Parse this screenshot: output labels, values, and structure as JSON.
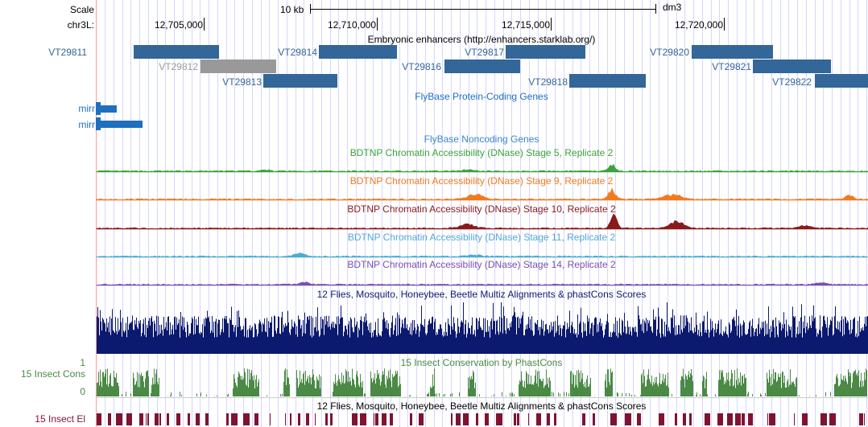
{
  "browser": {
    "ruler": {
      "scale_label": "Scale",
      "scale_bar_label": "10 kb",
      "assembly": "dm3",
      "chrom_label": "chr3L:",
      "ticks": [
        "12,705,000",
        "12,710,000",
        "12,715,000",
        "12,720,000"
      ]
    },
    "tracks": {
      "enhancers": {
        "title": "Embryonic enhancers (http://enhancers.starklab.org/)",
        "color": "#336699",
        "grey_color": "#999999",
        "items": [
          {
            "label": "VT29811"
          },
          {
            "label": "VT29812"
          },
          {
            "label": "VT29813"
          },
          {
            "label": "VT29814"
          },
          {
            "label": "VT29816"
          },
          {
            "label": "VT29817"
          },
          {
            "label": "VT29818"
          },
          {
            "label": "VT29820"
          },
          {
            "label": "VT29821"
          },
          {
            "label": "VT29822"
          }
        ]
      },
      "flybase_coding": {
        "title": "FlyBase Protein-Coding Genes",
        "color": "#1f6fbf",
        "items": [
          {
            "label": "mirr"
          },
          {
            "label": "mirr"
          }
        ]
      },
      "flybase_noncoding": {
        "title": "FlyBase Noncoding Genes",
        "color": "#3a86cf"
      },
      "dnase": [
        {
          "title": "BDTNP Chromatin Accessibility (DNase) Stage 5, Replicate 2",
          "color": "#3aa339"
        },
        {
          "title": "BDTNP Chromatin Accessibility (DNase) Stage 9, Replicate 2",
          "color": "#f07b1f"
        },
        {
          "title": "BDTNP Chromatin Accessibility (DNase) Stage 10, Replicate 2",
          "color": "#8b1a1a"
        },
        {
          "title": "BDTNP Chromatin Accessibility (DNase) Stage 11, Replicate 2",
          "color": "#4fa9d8"
        },
        {
          "title": "BDTNP Chromatin Accessibility (DNase) Stage 14, Replicate 2",
          "color": "#7b4fb0"
        }
      ],
      "multiz": {
        "title": "12 Flies, Mosquito, Honeybee, Beetle Multiz Alignments & phastCons Scores",
        "color": "#0b1a6e"
      },
      "phastcons": {
        "title": "15 Insect Conservation by PhastCons",
        "left_label": "15 Insect Cons",
        "y_max": "1",
        "y_min": "0",
        "color": "#4a8a45"
      },
      "elements": {
        "title": "12 Flies, Mosquito, Honeybee, Beetle Multiz Alignments & phastCons Scores",
        "left_label": "15 Insect El",
        "color": "#7f1331"
      }
    }
  }
}
